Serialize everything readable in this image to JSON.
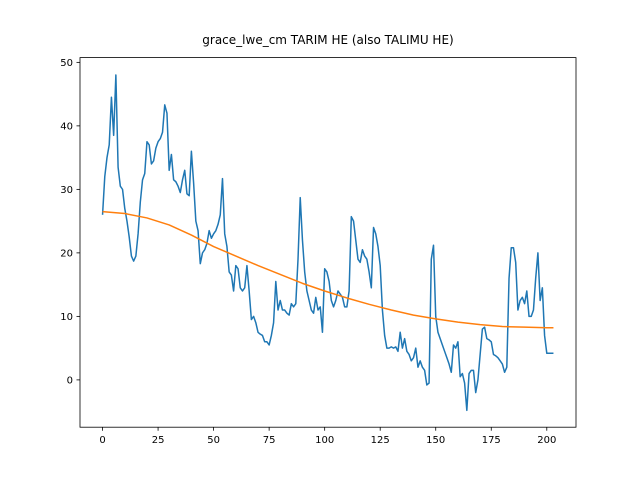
{
  "chart_data": {
    "type": "line",
    "title": "grace_lwe_cm TARIM HE (also TALIMU HE)",
    "xlim": [
      -10.15,
      213.15
    ],
    "ylim": [
      -7.45,
      50.75
    ],
    "xticks": [
      0,
      25,
      50,
      75,
      100,
      125,
      150,
      175,
      200
    ],
    "yticks": [
      0,
      10,
      20,
      30,
      40,
      50
    ],
    "series": [
      {
        "color": "#1f77b4",
        "x": [
          0,
          1,
          2,
          3,
          4,
          5,
          6,
          7,
          8,
          9,
          10,
          11,
          12,
          13,
          14,
          15,
          16,
          17,
          18,
          19,
          20,
          21,
          22,
          23,
          24,
          25,
          26,
          27,
          28,
          29,
          30,
          31,
          32,
          33,
          34,
          35,
          36,
          37,
          38,
          39,
          40,
          41,
          42,
          43,
          44,
          45,
          46,
          47,
          48,
          49,
          50,
          51,
          52,
          53,
          54,
          55,
          56,
          57,
          58,
          59,
          60,
          61,
          62,
          63,
          64,
          65,
          66,
          67,
          68,
          69,
          70,
          71,
          72,
          73,
          74,
          75,
          76,
          77,
          78,
          79,
          80,
          81,
          82,
          83,
          84,
          85,
          86,
          87,
          88,
          89,
          90,
          91,
          92,
          93,
          94,
          95,
          96,
          97,
          98,
          99,
          100,
          101,
          102,
          103,
          104,
          105,
          106,
          107,
          108,
          109,
          110,
          111,
          112,
          113,
          114,
          115,
          116,
          117,
          118,
          119,
          120,
          121,
          122,
          123,
          124,
          125,
          126,
          127,
          128,
          129,
          130,
          131,
          132,
          133,
          134,
          135,
          136,
          137,
          138,
          139,
          140,
          141,
          142,
          143,
          144,
          145,
          146,
          147,
          148,
          149,
          150,
          151,
          152,
          153,
          154,
          155,
          156,
          157,
          158,
          159,
          160,
          161,
          162,
          163,
          164,
          165,
          166,
          167,
          168,
          169,
          170,
          171,
          172,
          173,
          174,
          175,
          176,
          177,
          178,
          179,
          180,
          181,
          182,
          183,
          184,
          185,
          186,
          187,
          188,
          189,
          190,
          191,
          192,
          193,
          194,
          195,
          196,
          197,
          198,
          199,
          200,
          201,
          202,
          203
        ],
        "values": [
          26,
          32,
          35,
          37,
          44.5,
          38.5,
          48,
          33.5,
          30.5,
          30,
          27,
          25,
          22.5,
          19.5,
          18.7,
          19.5,
          23,
          28,
          31.5,
          32.5,
          37.5,
          37,
          34,
          34.5,
          36.5,
          37.5,
          38,
          39,
          43.3,
          42,
          33,
          35.5,
          31.5,
          31.2,
          30.5,
          29.5,
          31.5,
          33,
          29.3,
          29,
          36,
          31,
          25,
          23.5,
          18.3,
          20,
          20.5,
          21.5,
          23.5,
          22.3,
          23,
          23.5,
          24.5,
          26,
          31.7,
          23,
          21,
          17,
          16.5,
          14,
          18,
          17.5,
          14.5,
          14,
          14.5,
          18,
          14,
          9.5,
          10,
          9,
          7.5,
          7.2,
          7,
          6,
          6,
          5.5,
          7,
          9,
          15.5,
          11,
          12.5,
          11,
          11,
          10.5,
          10.2,
          12,
          11.5,
          12,
          19,
          28.7,
          22,
          17,
          14,
          12.5,
          11,
          10.5,
          13,
          11,
          11.5,
          7.5,
          17.5,
          17,
          15.5,
          12.5,
          11.5,
          12.5,
          14,
          13.5,
          13,
          11.5,
          11.5,
          14,
          25.7,
          25,
          22,
          19,
          18.5,
          20.5,
          19.5,
          19,
          17,
          14.5,
          24,
          23,
          21,
          18,
          11,
          7,
          5,
          5,
          5.2,
          5,
          5.2,
          4.5,
          7.5,
          5,
          6.5,
          4.5,
          4,
          3,
          3.5,
          5,
          2,
          3,
          2,
          1.5,
          -0.8,
          -0.5,
          19,
          21.2,
          10,
          7.5,
          6.5,
          5.5,
          4.5,
          3.5,
          2.5,
          1.2,
          5.5,
          5,
          6,
          0.5,
          1,
          -0.5,
          -4.8,
          1,
          1.5,
          1.5,
          -2,
          0,
          4,
          8,
          8.3,
          6.5,
          6.3,
          6,
          4,
          3.8,
          3.5,
          3,
          2.5,
          1.2,
          2,
          16,
          20.8,
          20.8,
          18.5,
          11,
          12.5,
          13,
          12,
          14,
          10,
          10,
          11,
          16,
          20,
          12.5,
          14.5,
          7,
          4.2,
          4.2,
          4.2,
          4.2
        ]
      },
      {
        "color": "#ff7f0e",
        "x": [
          0,
          10,
          20,
          30,
          40,
          50,
          60,
          70,
          80,
          90,
          100,
          110,
          120,
          130,
          140,
          150,
          160,
          170,
          180,
          190,
          200,
          203
        ],
        "values": [
          26.5,
          26.2,
          25.5,
          24.4,
          22.8,
          21,
          19.5,
          18,
          16.6,
          15.2,
          14,
          12.9,
          11.9,
          11,
          10.2,
          9.6,
          9.1,
          8.7,
          8.4,
          8.3,
          8.2,
          8.2
        ]
      }
    ]
  }
}
